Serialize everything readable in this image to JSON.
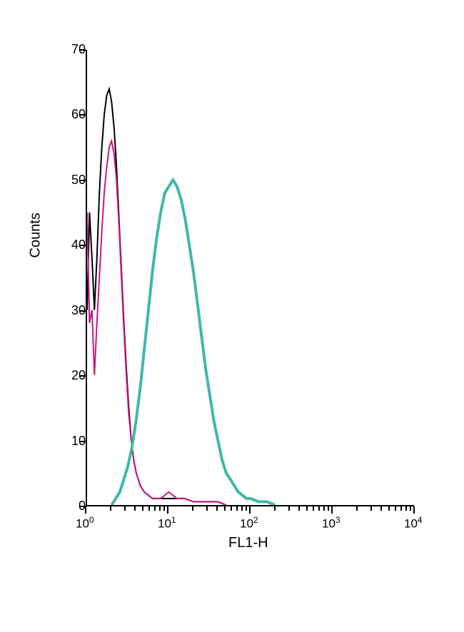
{
  "chart": {
    "type": "flow-cytometry-histogram",
    "background_color": "#ffffff",
    "border_color": "#000000",
    "ylabel": "Counts",
    "xlabel": "FL1-H",
    "label_fontsize": 20,
    "tick_fontsize": 18,
    "yaxis": {
      "min": 0,
      "max": 70,
      "ticks": [
        0,
        10,
        20,
        30,
        40,
        50,
        60,
        70
      ],
      "scale": "linear"
    },
    "xaxis": {
      "min": 0,
      "max": 4,
      "ticks": [
        0,
        1,
        2,
        3,
        4
      ],
      "tick_labels": [
        "10^0",
        "10^1",
        "10^2",
        "10^3",
        "10^4"
      ],
      "scale": "log"
    },
    "series": [
      {
        "name": "black-curve",
        "color": "#000000",
        "line_width": 2,
        "points": [
          [
            0,
            30
          ],
          [
            0.03,
            45
          ],
          [
            0.06,
            38
          ],
          [
            0.09,
            30
          ],
          [
            0.12,
            38
          ],
          [
            0.15,
            48
          ],
          [
            0.18,
            55
          ],
          [
            0.21,
            60
          ],
          [
            0.24,
            63
          ],
          [
            0.27,
            64
          ],
          [
            0.3,
            62
          ],
          [
            0.33,
            58
          ],
          [
            0.36,
            52
          ],
          [
            0.39,
            44
          ],
          [
            0.42,
            36
          ],
          [
            0.45,
            28
          ],
          [
            0.48,
            21
          ],
          [
            0.51,
            15
          ],
          [
            0.54,
            10
          ],
          [
            0.57,
            7
          ],
          [
            0.6,
            5
          ],
          [
            0.65,
            3
          ],
          [
            0.7,
            2
          ],
          [
            0.8,
            1
          ],
          [
            0.9,
            1
          ],
          [
            1.0,
            1
          ],
          [
            1.1,
            1
          ],
          [
            1.2,
            1
          ],
          [
            1.3,
            0.5
          ],
          [
            1.4,
            0.5
          ],
          [
            1.5,
            0.5
          ],
          [
            1.6,
            0.5
          ],
          [
            1.7,
            0
          ]
        ]
      },
      {
        "name": "magenta-curve",
        "color": "#c71585",
        "line_width": 2,
        "points": [
          [
            0,
            45
          ],
          [
            0.03,
            28
          ],
          [
            0.06,
            30
          ],
          [
            0.09,
            20
          ],
          [
            0.12,
            28
          ],
          [
            0.15,
            35
          ],
          [
            0.18,
            42
          ],
          [
            0.21,
            48
          ],
          [
            0.24,
            52
          ],
          [
            0.27,
            55
          ],
          [
            0.3,
            56
          ],
          [
            0.33,
            54
          ],
          [
            0.36,
            50
          ],
          [
            0.39,
            43
          ],
          [
            0.42,
            35
          ],
          [
            0.45,
            27
          ],
          [
            0.48,
            20
          ],
          [
            0.51,
            14
          ],
          [
            0.54,
            10
          ],
          [
            0.57,
            7
          ],
          [
            0.6,
            5
          ],
          [
            0.65,
            3
          ],
          [
            0.7,
            2
          ],
          [
            0.8,
            1
          ],
          [
            0.9,
            1
          ],
          [
            1.0,
            2
          ],
          [
            1.1,
            1
          ],
          [
            1.2,
            1
          ],
          [
            1.3,
            0.5
          ],
          [
            1.4,
            0.5
          ],
          [
            1.5,
            0.5
          ],
          [
            1.6,
            0.5
          ],
          [
            1.7,
            0
          ]
        ]
      },
      {
        "name": "teal-curve",
        "color": "#3fb8a8",
        "line_width": 4,
        "points": [
          [
            0.3,
            0
          ],
          [
            0.35,
            1
          ],
          [
            0.4,
            2
          ],
          [
            0.45,
            4
          ],
          [
            0.5,
            6
          ],
          [
            0.55,
            9
          ],
          [
            0.6,
            13
          ],
          [
            0.65,
            18
          ],
          [
            0.7,
            24
          ],
          [
            0.75,
            30
          ],
          [
            0.8,
            36
          ],
          [
            0.85,
            41
          ],
          [
            0.9,
            45
          ],
          [
            0.95,
            48
          ],
          [
            1.0,
            49
          ],
          [
            1.05,
            50
          ],
          [
            1.1,
            49
          ],
          [
            1.15,
            47
          ],
          [
            1.2,
            44
          ],
          [
            1.25,
            40
          ],
          [
            1.3,
            36
          ],
          [
            1.35,
            31
          ],
          [
            1.4,
            26
          ],
          [
            1.45,
            21
          ],
          [
            1.5,
            17
          ],
          [
            1.55,
            13
          ],
          [
            1.6,
            10
          ],
          [
            1.65,
            7
          ],
          [
            1.7,
            5
          ],
          [
            1.75,
            4
          ],
          [
            1.8,
            3
          ],
          [
            1.85,
            2
          ],
          [
            1.9,
            1.5
          ],
          [
            1.95,
            1
          ],
          [
            2.0,
            1
          ],
          [
            2.1,
            0.5
          ],
          [
            2.2,
            0.5
          ],
          [
            2.3,
            0
          ]
        ]
      }
    ]
  }
}
